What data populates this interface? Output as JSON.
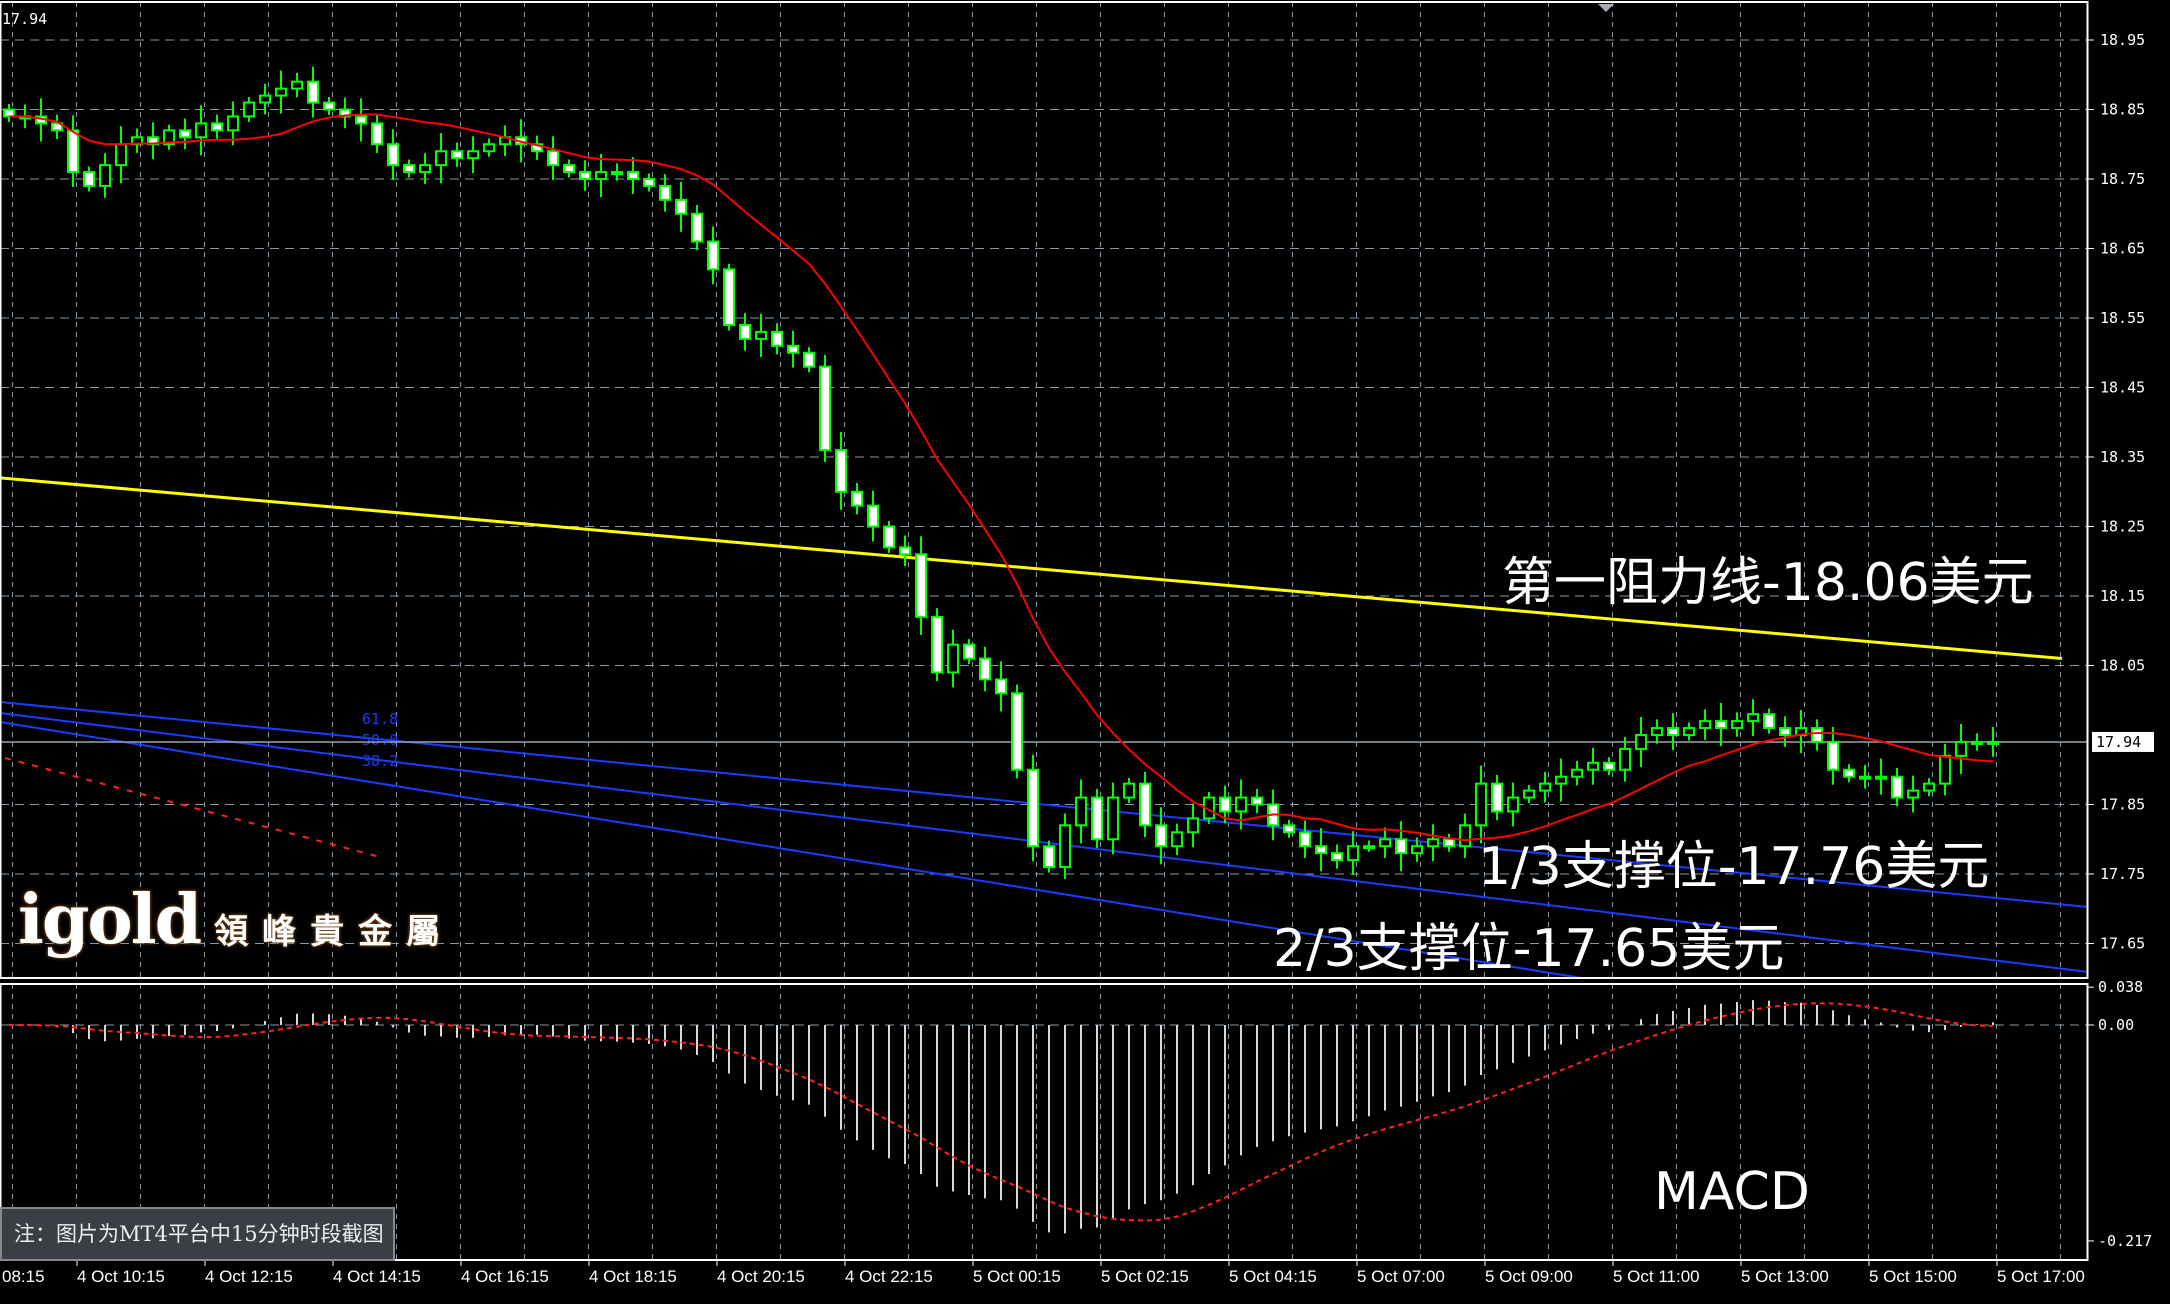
{
  "header": {
    "top_left_price": "17.94"
  },
  "chart_data": {
    "type": "candlestick",
    "candles": {
      "close": [
        18.84,
        18.84,
        18.83,
        18.82,
        18.76,
        18.74,
        18.77,
        18.8,
        18.81,
        18.8,
        18.82,
        18.81,
        18.83,
        18.82,
        18.84,
        18.86,
        18.87,
        18.88,
        18.89,
        18.86,
        18.85,
        18.84,
        18.83,
        18.8,
        18.77,
        18.76,
        18.77,
        18.79,
        18.78,
        18.79,
        18.8,
        18.81,
        18.8,
        18.79,
        18.77,
        18.76,
        18.75,
        18.76,
        18.76,
        18.75,
        18.74,
        18.72,
        18.7,
        18.66,
        18.62,
        18.54,
        18.52,
        18.53,
        18.51,
        18.5,
        18.48,
        18.36,
        18.3,
        18.28,
        18.25,
        18.22,
        18.21,
        18.12,
        18.04,
        18.08,
        18.06,
        18.03,
        18.01,
        17.9,
        17.79,
        17.76,
        17.82,
        17.86,
        17.8,
        17.86,
        17.88,
        17.82,
        17.79,
        17.81,
        17.83,
        17.86,
        17.84,
        17.86,
        17.85,
        17.82,
        17.81,
        17.79,
        17.78,
        17.77,
        17.79,
        17.79,
        17.8,
        17.78,
        17.79,
        17.8,
        17.79,
        17.82,
        17.88,
        17.84,
        17.86,
        17.87,
        17.88,
        17.89,
        17.9,
        17.91,
        17.9,
        17.93,
        17.95,
        17.96,
        17.95,
        17.96,
        17.97,
        17.96,
        17.97,
        17.98,
        17.96,
        17.95,
        17.96,
        17.94,
        17.9,
        17.89,
        17.89,
        17.89,
        17.86,
        17.87,
        17.88,
        17.92,
        17.94,
        17.94,
        17.94
      ]
    },
    "price_axis": {
      "labels": [
        "18.95",
        "18.85",
        "18.75",
        "18.65",
        "18.55",
        "18.45",
        "18.35",
        "18.25",
        "18.15",
        "18.05",
        "17.85",
        "17.75",
        "17.65"
      ],
      "range": [
        17.62,
        18.99
      ]
    },
    "current_price": "17.94",
    "time_axis": {
      "labels": [
        "08:15",
        "4 Oct 10:15",
        "4 Oct 12:15",
        "4 Oct 14:15",
        "4 Oct 16:15",
        "4 Oct 18:15",
        "4 Oct 20:15",
        "4 Oct 22:15",
        "5 Oct 00:15",
        "5 Oct 02:15",
        "5 Oct 04:15",
        "5 Oct 07:00",
        "5 Oct 09:00",
        "5 Oct 11:00",
        "5 Oct 13:00",
        "5 Oct 15:00",
        "5 Oct 17:00"
      ]
    },
    "resistance_line": {
      "start_price": 18.32,
      "end_price": 18.06
    },
    "fib_levels": [
      "61.8",
      "50.0",
      "38.2"
    ],
    "macd": {
      "label": "MACD",
      "axis_labels": [
        "0.038",
        "0.00",
        "-0.217"
      ],
      "range": [
        -0.217,
        0.038
      ]
    },
    "grid": true
  },
  "annotations": {
    "resistance_1": "第一阻力线-18.06美元",
    "support_1": "1/3支撑位-17.76美元",
    "support_2": "2/3支撑位-17.65美元"
  },
  "watermark": {
    "logo": "igold",
    "name": "領峰貴金屬"
  },
  "note": "注：图片为MT4平台中15分钟时段截图",
  "colors": {
    "candle": "#00ff00",
    "ma": "#ff0000",
    "resistance": "#ffff00",
    "fib": "#1a3cff",
    "grid": "#8a9aa8",
    "signal": "#ff2020"
  }
}
